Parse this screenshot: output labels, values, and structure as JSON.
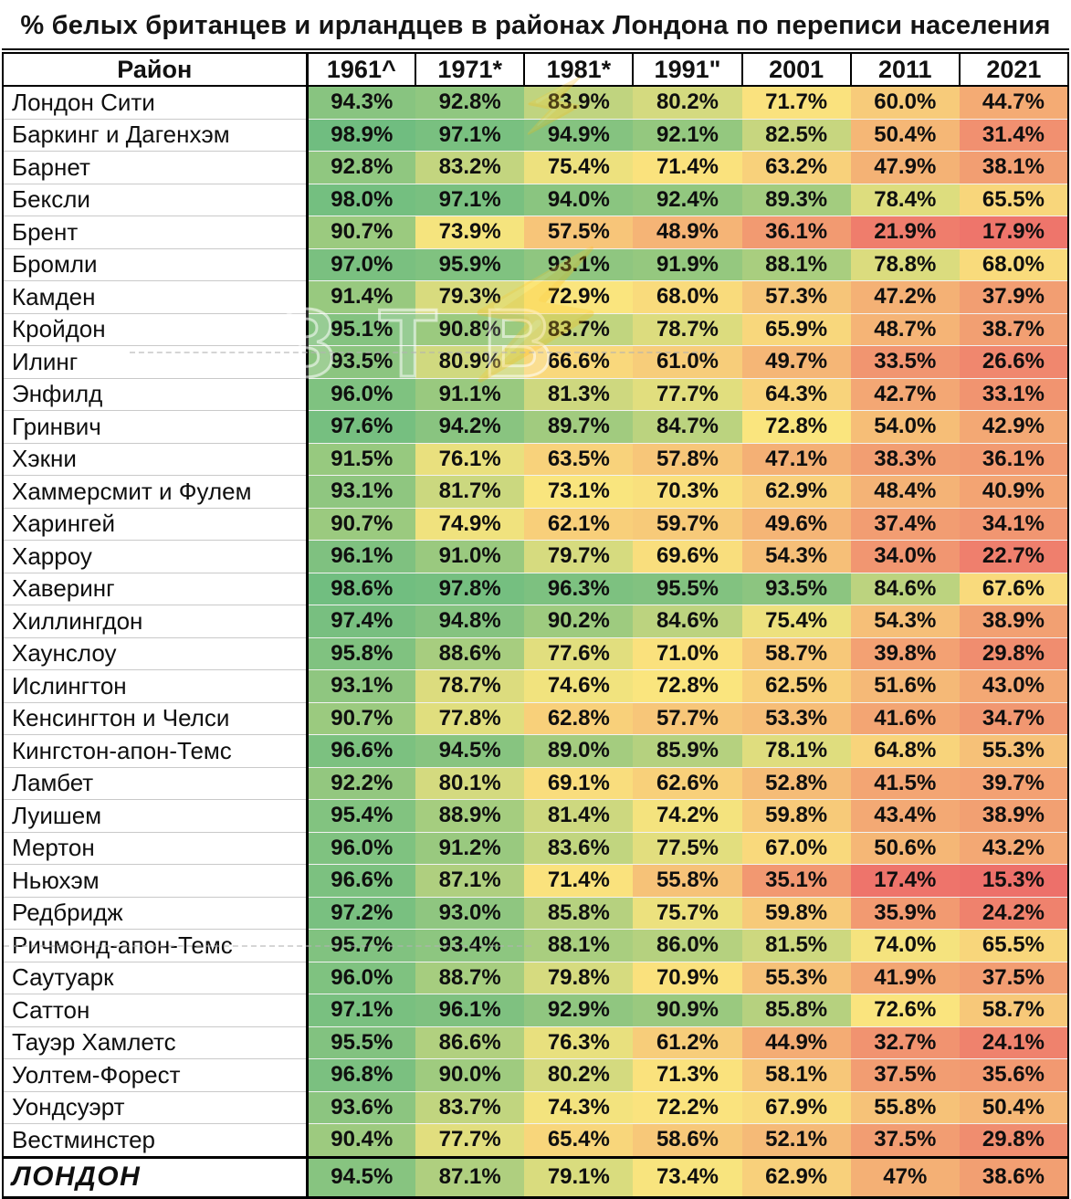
{
  "watermark": {
    "text": "ЗТВ"
  },
  "chart_data": {
    "type": "heatmap",
    "title": "% белых британцев и ирландцев в районах Лондона по переписи населения",
    "columns": [
      "Район",
      "1961^",
      "1971*",
      "1981*",
      "1991\"",
      "2001",
      "2011",
      "2021"
    ],
    "rows": [
      {
        "name": "Лондон Сити",
        "values": [
          "94.3%",
          "92.8%",
          "83.9%",
          "80.2%",
          "71.7%",
          "60.0%",
          "44.7%"
        ]
      },
      {
        "name": "Баркинг и Дагенхэм",
        "values": [
          "98.9%",
          "97.1%",
          "94.9%",
          "92.1%",
          "82.5%",
          "50.4%",
          "31.4%"
        ]
      },
      {
        "name": "Барнет",
        "values": [
          "92.8%",
          "83.2%",
          "75.4%",
          "71.4%",
          "63.2%",
          "47.9%",
          "38.1%"
        ]
      },
      {
        "name": "Бексли",
        "values": [
          "98.0%",
          "97.1%",
          "94.0%",
          "92.4%",
          "89.3%",
          "78.4%",
          "65.5%"
        ]
      },
      {
        "name": "Брент",
        "values": [
          "90.7%",
          "73.9%",
          "57.5%",
          "48.9%",
          "36.1%",
          "21.9%",
          "17.9%"
        ]
      },
      {
        "name": "Бромли",
        "values": [
          "97.0%",
          "95.9%",
          "93.1%",
          "91.9%",
          "88.1%",
          "78.8%",
          "68.0%"
        ]
      },
      {
        "name": "Камден",
        "values": [
          "91.4%",
          "79.3%",
          "72.9%",
          "68.0%",
          "57.3%",
          "47.2%",
          "37.9%"
        ]
      },
      {
        "name": "Кройдон",
        "values": [
          "95.1%",
          "90.8%",
          "83.7%",
          "78.7%",
          "65.9%",
          "48.7%",
          "38.7%"
        ]
      },
      {
        "name": "Илинг",
        "values": [
          "93.5%",
          "80.9%",
          "66.6%",
          "61.0%",
          "49.7%",
          "33.5%",
          "26.6%"
        ]
      },
      {
        "name": "Энфилд",
        "values": [
          "96.0%",
          "91.1%",
          "81.3%",
          "77.7%",
          "64.3%",
          "42.7%",
          "33.1%"
        ]
      },
      {
        "name": "Гринвич",
        "values": [
          "97.6%",
          "94.2%",
          "89.7%",
          "84.7%",
          "72.8%",
          "54.0%",
          "42.9%"
        ]
      },
      {
        "name": "Хэкни",
        "values": [
          "91.5%",
          "76.1%",
          "63.5%",
          "57.8%",
          "47.1%",
          "38.3%",
          "36.1%"
        ]
      },
      {
        "name": "Хаммерсмит и Фулем",
        "values": [
          "93.1%",
          "81.7%",
          "73.1%",
          "70.3%",
          "62.9%",
          "48.4%",
          "40.9%"
        ]
      },
      {
        "name": "Харингей",
        "values": [
          "90.7%",
          "74.9%",
          "62.1%",
          "59.7%",
          "49.6%",
          "37.4%",
          "34.1%"
        ]
      },
      {
        "name": "Харроу",
        "values": [
          "96.1%",
          "91.0%",
          "79.7%",
          "69.6%",
          "54.3%",
          "34.0%",
          "22.7%"
        ]
      },
      {
        "name": "Хаверинг",
        "values": [
          "98.6%",
          "97.8%",
          "96.3%",
          "95.5%",
          "93.5%",
          "84.6%",
          "67.6%"
        ]
      },
      {
        "name": "Хиллингдон",
        "values": [
          "97.4%",
          "94.8%",
          "90.2%",
          "84.6%",
          "75.4%",
          "54.3%",
          "38.9%"
        ]
      },
      {
        "name": "Хаунслоу",
        "values": [
          "95.8%",
          "88.6%",
          "77.6%",
          "71.0%",
          "58.7%",
          "39.8%",
          "29.8%"
        ]
      },
      {
        "name": "Ислингтон",
        "values": [
          "93.1%",
          "78.7%",
          "74.6%",
          "72.8%",
          "62.5%",
          "51.6%",
          "43.0%"
        ]
      },
      {
        "name": "Кенсингтон и Челси",
        "values": [
          "90.7%",
          "77.8%",
          "62.8%",
          "57.7%",
          "53.3%",
          "41.6%",
          "34.7%"
        ]
      },
      {
        "name": "Кингстон-апон-Темс",
        "values": [
          "96.6%",
          "94.5%",
          "89.0%",
          "85.9%",
          "78.1%",
          "64.8%",
          "55.3%"
        ]
      },
      {
        "name": "Ламбет",
        "values": [
          "92.2%",
          "80.1%",
          "69.1%",
          "62.6%",
          "52.8%",
          "41.5%",
          "39.7%"
        ]
      },
      {
        "name": "Луишем",
        "values": [
          "95.4%",
          "88.9%",
          "81.4%",
          "74.2%",
          "59.8%",
          "43.4%",
          "38.9%"
        ]
      },
      {
        "name": "Мертон",
        "values": [
          "96.0%",
          "91.2%",
          "83.6%",
          "77.5%",
          "67.0%",
          "50.6%",
          "43.2%"
        ]
      },
      {
        "name": "Ньюхэм",
        "values": [
          "96.6%",
          "87.1%",
          "71.4%",
          "55.8%",
          "35.1%",
          "17.4%",
          "15.3%"
        ]
      },
      {
        "name": "Редбридж",
        "values": [
          "97.2%",
          "93.0%",
          "85.8%",
          "75.7%",
          "59.8%",
          "35.9%",
          "24.2%"
        ]
      },
      {
        "name": "Ричмонд-апон-Темс",
        "values": [
          "95.7%",
          "93.4%",
          "88.1%",
          "86.0%",
          "81.5%",
          "74.0%",
          "65.5%"
        ]
      },
      {
        "name": "Саутуарк",
        "values": [
          "96.0%",
          "88.7%",
          "79.8%",
          "70.9%",
          "55.3%",
          "41.9%",
          "37.5%"
        ]
      },
      {
        "name": "Саттон",
        "values": [
          "97.1%",
          "96.1%",
          "92.9%",
          "90.9%",
          "85.8%",
          "72.6%",
          "58.7%"
        ]
      },
      {
        "name": "Тауэр Хамлетс",
        "values": [
          "95.5%",
          "86.6%",
          "76.3%",
          "61.2%",
          "44.9%",
          "32.7%",
          "24.1%"
        ]
      },
      {
        "name": "Уолтем-Форест",
        "values": [
          "96.8%",
          "90.0%",
          "80.2%",
          "71.3%",
          "58.1%",
          "37.5%",
          "35.6%"
        ]
      },
      {
        "name": "Уондсуэрт",
        "values": [
          "93.6%",
          "83.7%",
          "74.3%",
          "72.2%",
          "67.9%",
          "55.8%",
          "50.4%"
        ]
      },
      {
        "name": "Вестминстер",
        "values": [
          "90.4%",
          "77.7%",
          "65.4%",
          "58.6%",
          "52.1%",
          "37.5%",
          "29.8%"
        ]
      }
    ],
    "total": {
      "name": "ЛОНДОН",
      "values": [
        "94.5%",
        "87.1%",
        "79.1%",
        "73.4%",
        "62.9%",
        "47%",
        "38.6%"
      ]
    },
    "color_scale": [
      {
        "value": 15,
        "color": "#ed6f6a"
      },
      {
        "value": 73,
        "color": "#fae57e"
      },
      {
        "value": 99,
        "color": "#6fbd80"
      }
    ],
    "value_text_color": "#0f0f0f",
    "layout": {
      "grid": "header-boxed, name column separated by thick rule",
      "legend": "none"
    }
  }
}
